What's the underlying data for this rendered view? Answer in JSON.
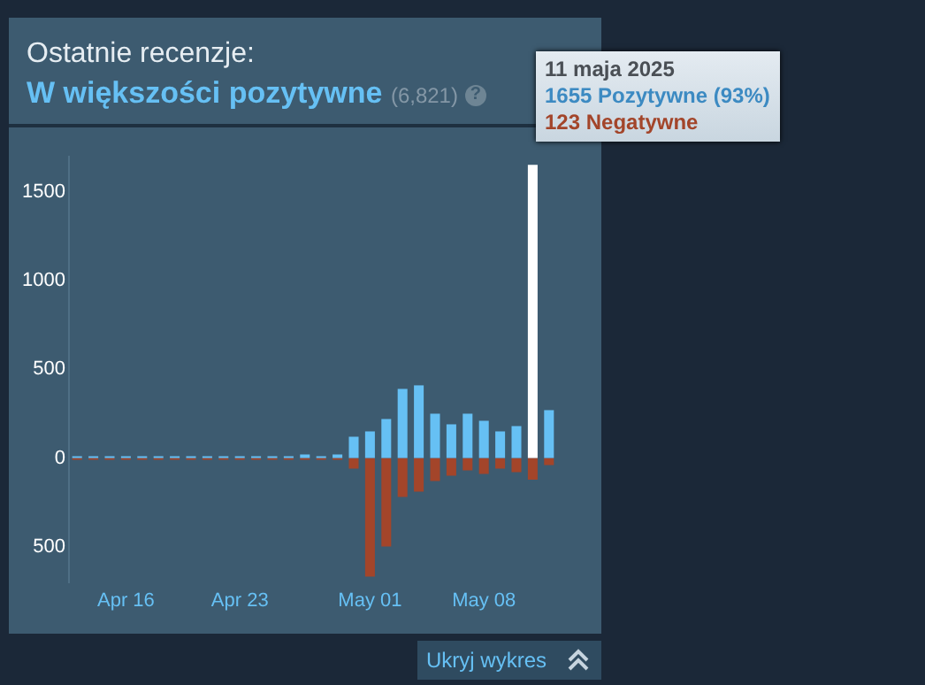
{
  "chart_data": {
    "type": "bar",
    "title": "Ostatnie recenzje:",
    "subtitle": "W większości pozytywne",
    "annotations": [
      "(6,821)",
      "?",
      "11 maja 2025",
      "1655 Pozytywne (93%)",
      "123 Negatywne",
      "Ukryj wykres"
    ],
    "categories": [
      null,
      null,
      null,
      "Apr 16",
      null,
      null,
      null,
      null,
      null,
      null,
      "Apr 23",
      null,
      null,
      null,
      null,
      null,
      null,
      null,
      "May 01",
      null,
      null,
      null,
      null,
      null,
      null,
      "May 08",
      null,
      null,
      null,
      null
    ],
    "series": [
      {
        "colors": [
          "#66c0f4",
          "#66c0f4",
          "#66c0f4",
          "#66c0f4",
          "#66c0f4",
          "#66c0f4",
          "#66c0f4",
          "#66c0f4",
          "#66c0f4",
          "#66c0f4",
          "#66c0f4",
          "#66c0f4",
          "#66c0f4",
          "#66c0f4",
          "#66c0f4",
          "#66c0f4",
          "#66c0f4",
          "#66c0f4",
          "#66c0f4",
          "#66c0f4",
          "#66c0f4",
          "#66c0f4",
          "#66c0f4",
          "#66c0f4",
          "#66c0f4",
          "#66c0f4",
          "#66c0f4",
          "#66c0f4",
          "#ffffff",
          "#66c0f4"
        ],
        "values": [
          10,
          10,
          10,
          10,
          10,
          10,
          10,
          10,
          10,
          10,
          10,
          10,
          10,
          10,
          20,
          10,
          20,
          120,
          150,
          220,
          390,
          410,
          250,
          190,
          250,
          210,
          150,
          180,
          1655,
          270
        ]
      },
      {
        "color": "#a3452a",
        "values": [
          -10,
          -10,
          -10,
          -10,
          -10,
          -10,
          -10,
          -10,
          -10,
          -10,
          -10,
          -10,
          -10,
          -10,
          -10,
          -10,
          -10,
          -60,
          -670,
          -500,
          -220,
          -190,
          -130,
          -100,
          -70,
          -90,
          -60,
          -80,
          -123,
          -40
        ]
      }
    ],
    "stacked": true,
    "ylim": [
      -700,
      1700
    ],
    "yticks": [
      {
        "value": -500,
        "label": "500"
      },
      0,
      500,
      1000,
      1500
    ],
    "grid": false,
    "legend": false
  }
}
